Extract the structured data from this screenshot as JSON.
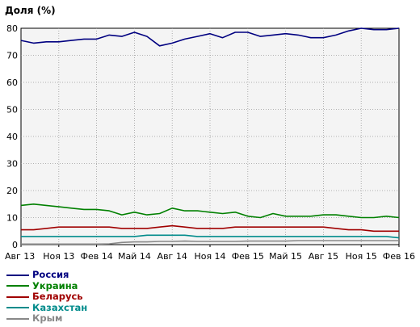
{
  "chart_data": {
    "type": "line",
    "title": "Доля (%)",
    "xlabel": "",
    "ylabel": "Доля (%)",
    "ylim": [
      0,
      80
    ],
    "yticks": [
      0,
      10,
      20,
      30,
      40,
      50,
      60,
      70,
      80
    ],
    "grid": true,
    "legend_position": "bottom-left",
    "categories": [
      "Авг 13",
      "Ноя 13",
      "Фев 14",
      "Май 14",
      "Авг 14",
      "Ноя 14",
      "Фев 15",
      "Май 15",
      "Авг 15",
      "Ноя 15",
      "Фев 16"
    ],
    "x": [
      "Авг 13",
      "Сен 13",
      "Окт 13",
      "Ноя 13",
      "Дек 13",
      "Янв 14",
      "Фев 14",
      "Мар 14",
      "Апр 14",
      "Май 14",
      "Июн 14",
      "Июл 14",
      "Авг 14",
      "Сен 14",
      "Окт 14",
      "Ноя 14",
      "Дек 14",
      "Янв 15",
      "Фев 15",
      "Мар 15",
      "Апр 15",
      "Май 15",
      "Июн 15",
      "Июл 15",
      "Авг 15",
      "Сен 15",
      "Окт 15",
      "Ноя 15",
      "Дек 15",
      "Янв 16",
      "Фев 16"
    ],
    "series": [
      {
        "name": "Россия",
        "color": "#000080",
        "values": [
          75.5,
          74.5,
          75,
          75,
          75.5,
          76,
          76,
          77.5,
          77,
          78.5,
          77,
          73.5,
          74.5,
          76,
          77,
          78,
          76.5,
          78.5,
          78.5,
          77,
          77.5,
          78,
          77.5,
          76.5,
          76.5,
          77.5,
          79,
          80,
          79.5,
          79.5,
          80
        ]
      },
      {
        "name": "Украина",
        "color": "#008000",
        "values": [
          14.5,
          15,
          14.5,
          14,
          13.5,
          13,
          13,
          12.5,
          11,
          12,
          11,
          11.5,
          13.5,
          12.5,
          12.5,
          12,
          11.5,
          12,
          10.5,
          10,
          11.5,
          10.5,
          10.5,
          10.5,
          11,
          11,
          10.5,
          10,
          10,
          10.5,
          10
        ]
      },
      {
        "name": "Беларусь",
        "color": "#a00000",
        "values": [
          5.5,
          5.5,
          6,
          6.5,
          6.5,
          6.5,
          6.5,
          6.5,
          6,
          6,
          6,
          6.5,
          7,
          6.5,
          6,
          6,
          6,
          6.5,
          6.5,
          6.5,
          6.5,
          6.5,
          6.5,
          6.5,
          6.5,
          6,
          5.5,
          5.5,
          5,
          5,
          5
        ]
      },
      {
        "name": "Казахстан",
        "color": "#008b8b",
        "values": [
          3,
          3,
          3,
          3,
          3,
          3,
          3,
          3,
          3,
          3,
          3.5,
          3.5,
          3.5,
          3.5,
          3,
          3,
          3,
          3,
          3,
          3,
          3,
          3,
          3,
          3,
          3,
          3,
          3,
          3,
          3,
          3,
          2.5
        ]
      },
      {
        "name": "Крым",
        "color": "#888888",
        "values": [
          0.2,
          0.2,
          0.2,
          0.2,
          0.2,
          0.2,
          0.2,
          0.3,
          0.8,
          1,
          1,
          1.2,
          1.2,
          1.3,
          1.2,
          1.2,
          1.2,
          1.2,
          1.3,
          1.3,
          1.3,
          1.3,
          1.5,
          1.5,
          1.5,
          1.5,
          1.5,
          1.5,
          1.5,
          1.5,
          1.5
        ]
      }
    ]
  }
}
